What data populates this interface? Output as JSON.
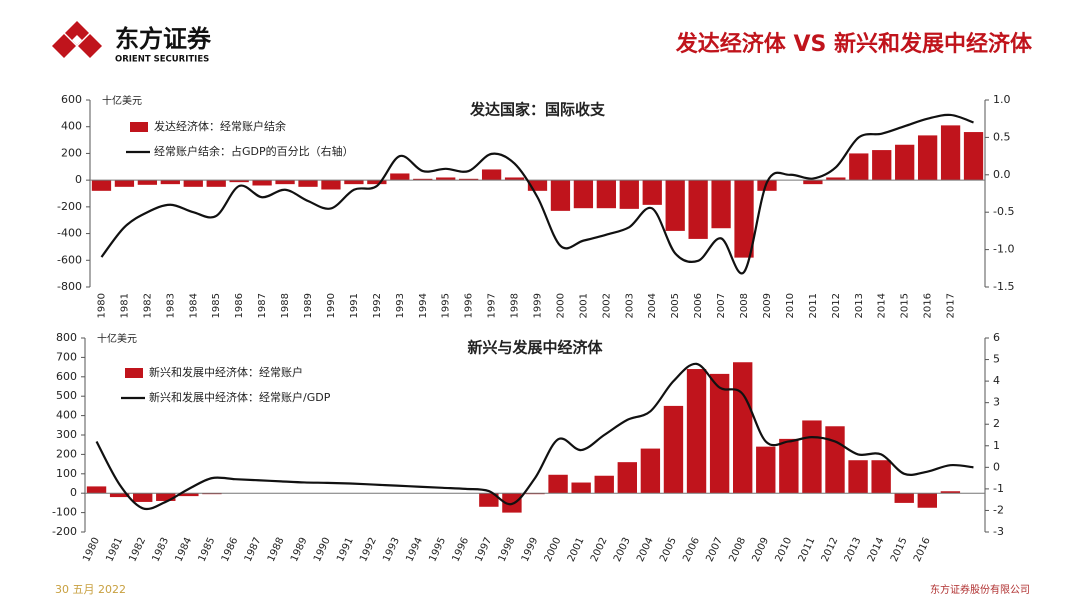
{
  "header": {
    "logo_text": "东方证券",
    "logo_subtext": "ORIENT SECURITIES",
    "title": "发达经济体 VS 新兴和发展中经济体"
  },
  "chart_data": [
    {
      "type": "bar_line",
      "title": "发达国家：国际收支",
      "y_label": "十亿美元",
      "categories": [
        "1980",
        "1981",
        "1982",
        "1983",
        "1984",
        "1985",
        "1986",
        "1987",
        "1988",
        "1989",
        "1990",
        "1991",
        "1992",
        "1993",
        "1994",
        "1995",
        "1996",
        "1997",
        "1998",
        "1999",
        "2000",
        "2001",
        "2002",
        "2003",
        "2004",
        "2005",
        "2006",
        "2007",
        "2008",
        "2009",
        "2010",
        "2011",
        "2012",
        "2013",
        "2014",
        "2015",
        "2016",
        "2017",
        null
      ],
      "series": [
        {
          "name": "发达经济体：经常账户结余",
          "type": "bar",
          "color": "#c0141c",
          "values": [
            -80,
            -50,
            -35,
            -30,
            -50,
            -50,
            -15,
            -40,
            -30,
            -50,
            -70,
            -30,
            -30,
            50,
            10,
            20,
            10,
            80,
            20,
            -80,
            -230,
            -210,
            -210,
            -215,
            -185,
            -380,
            -440,
            -360,
            -580,
            -80,
            0,
            -30,
            20,
            200,
            225,
            265,
            335,
            410,
            360
          ]
        },
        {
          "name": "经常账户结余：占GDP的百分比（右轴）",
          "type": "line",
          "color": "#111111",
          "axis": "y2",
          "values": [
            -1.1,
            -0.7,
            -0.5,
            -0.4,
            -0.5,
            -0.55,
            -0.15,
            -0.3,
            -0.2,
            -0.35,
            -0.45,
            -0.2,
            -0.15,
            0.25,
            0.05,
            0.08,
            0.05,
            0.28,
            0.15,
            -0.3,
            -0.95,
            -0.88,
            -0.8,
            -0.7,
            -0.45,
            -1.05,
            -1.15,
            -0.85,
            -1.3,
            -0.1,
            0.0,
            -0.05,
            0.1,
            0.5,
            0.55,
            0.65,
            0.75,
            0.8,
            0.7
          ]
        }
      ],
      "ylim": [
        -800,
        600
      ],
      "yticks": [
        -800,
        -600,
        -400,
        -200,
        0,
        200,
        400,
        600
      ],
      "y2lim": [
        -1.5,
        1.0
      ],
      "y2ticks": [
        {
          "value": -1.5,
          "label": "-1.5"
        },
        {
          "value": -1.0,
          "label": "-1.0"
        },
        {
          "value": -0.5,
          "label": "-0.5"
        },
        {
          "value": 0,
          "label": "0.0"
        },
        {
          "value": 0.5,
          "label": "0.5"
        },
        {
          "value": 1.0,
          "label": "1.0"
        }
      ]
    },
    {
      "type": "bar_line",
      "title": "新兴与发展中经济体",
      "y_label": "十亿美元",
      "categories": [
        "1980",
        "1981",
        "1982",
        "1983",
        "1984",
        "1985",
        "1986",
        "1987",
        "1988",
        "1989",
        "1990",
        "1991",
        "1992",
        "1993",
        "1994",
        "1995",
        "1996",
        "1997",
        "1998",
        "1999",
        "2000",
        "2001",
        "2002",
        "2003",
        "2004",
        "2005",
        "2006",
        "2007",
        "2008",
        "2009",
        "2010",
        "2011",
        "2012",
        "2013",
        "2014",
        "2015",
        "2016",
        null,
        null
      ],
      "series": [
        {
          "name": "新兴和发展中经济体：经常账户",
          "type": "bar",
          "color": "#c0141c",
          "values": [
            35,
            -20,
            -45,
            -40,
            -15,
            -5,
            0,
            0,
            0,
            0,
            0,
            0,
            0,
            0,
            0,
            0,
            0,
            -70,
            -100,
            -5,
            95,
            55,
            90,
            160,
            230,
            450,
            640,
            615,
            675,
            240,
            280,
            375,
            345,
            170,
            170,
            -50,
            -75,
            10,
            0
          ]
        },
        {
          "name": "新兴和发展中经济体：经常账户/GDP",
          "type": "line",
          "color": "#111111",
          "axis": "y2",
          "values": [
            1.2,
            -0.8,
            -1.9,
            -1.6,
            -1.0,
            -0.5,
            -0.55,
            -0.6,
            -0.65,
            -0.7,
            -0.72,
            -0.75,
            -0.8,
            -0.85,
            -0.9,
            -0.95,
            -1.0,
            -1.1,
            -1.7,
            -0.5,
            1.3,
            0.8,
            1.5,
            2.2,
            2.6,
            4.0,
            4.8,
            3.7,
            3.4,
            1.2,
            1.2,
            1.4,
            1.2,
            0.6,
            0.6,
            -0.3,
            -0.2,
            0.1,
            0.0
          ]
        }
      ],
      "ylim": [
        -200,
        800
      ],
      "yticks": [
        -200,
        -100,
        0,
        100,
        200,
        300,
        400,
        500,
        600,
        700,
        800
      ],
      "y2lim": [
        -3,
        6
      ],
      "y2ticks": [
        -3,
        -2,
        -1,
        0,
        1,
        2,
        3,
        4,
        5,
        6
      ]
    }
  ],
  "footer": {
    "date": "30 五月 2022",
    "company": "东方证券股份有限公司"
  }
}
